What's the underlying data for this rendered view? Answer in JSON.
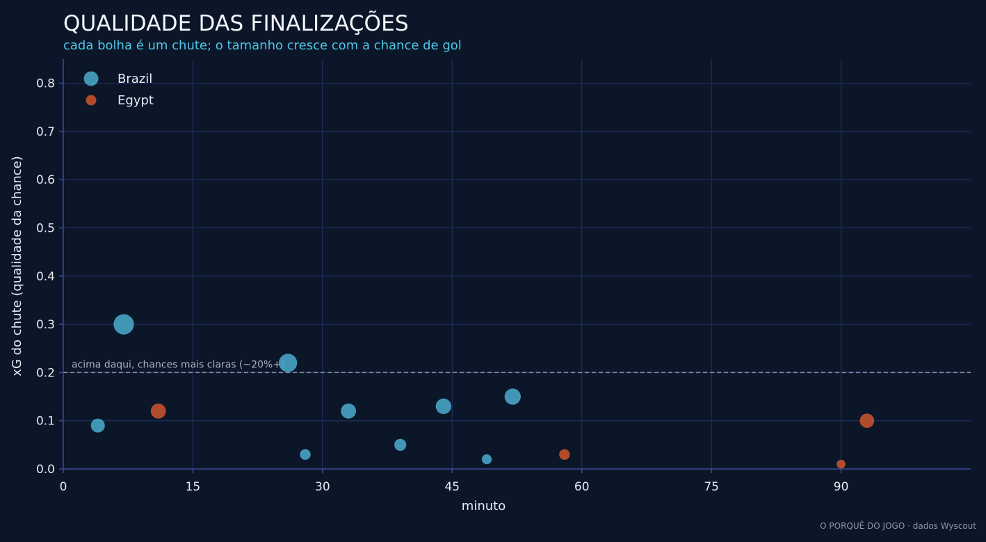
{
  "chart_data": {
    "type": "scatter",
    "title": "QUALIDADE DAS FINALIZAÇÕES",
    "subtitle": "cada bolha é um chute; o tamanho cresce com a chance de gol",
    "xlabel": "minuto",
    "ylabel": "xG do chute (qualidade da chance)",
    "xlim": [
      0,
      105
    ],
    "ylim": [
      0,
      0.85
    ],
    "xticks": [
      0,
      15,
      30,
      45,
      60,
      75,
      90
    ],
    "yticks": [
      0.0,
      0.1,
      0.2,
      0.3,
      0.4,
      0.5,
      0.6,
      0.7,
      0.8
    ],
    "grid": true,
    "legend_placement": "top-left",
    "reference_line": {
      "y": 0.2,
      "label": "acima daqui, chances mais claras (~20%+)"
    },
    "series": [
      {
        "name": "Brazil",
        "color": "#4aa8c8",
        "points": [
          {
            "x": 4,
            "y": 0.09
          },
          {
            "x": 7,
            "y": 0.3
          },
          {
            "x": 26,
            "y": 0.22
          },
          {
            "x": 28,
            "y": 0.03
          },
          {
            "x": 33,
            "y": 0.12
          },
          {
            "x": 39,
            "y": 0.05
          },
          {
            "x": 44,
            "y": 0.13
          },
          {
            "x": 49,
            "y": 0.02
          },
          {
            "x": 52,
            "y": 0.15
          }
        ]
      },
      {
        "name": "Egypt",
        "color": "#c9532c",
        "points": [
          {
            "x": 11,
            "y": 0.12
          },
          {
            "x": 58,
            "y": 0.03
          },
          {
            "x": 90,
            "y": 0.01
          },
          {
            "x": 93,
            "y": 0.1
          }
        ]
      }
    ]
  },
  "credit": "O PORQUÊ DO JOGO · dados Wyscout"
}
